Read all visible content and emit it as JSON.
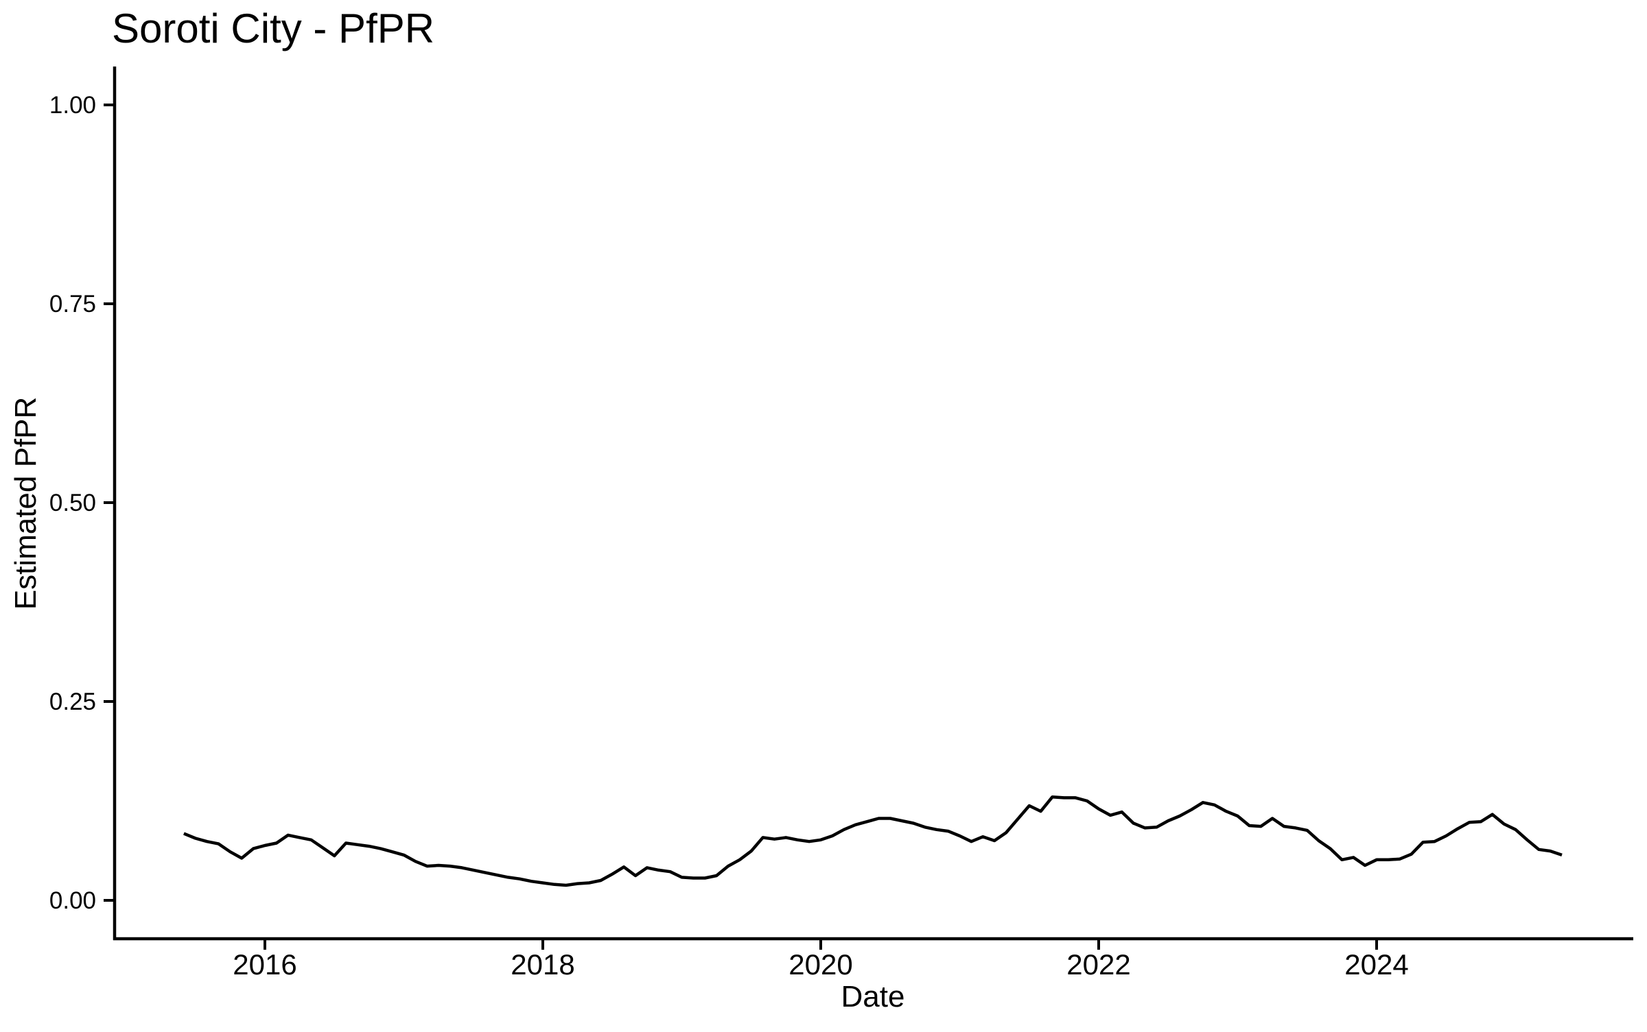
{
  "chart_data": {
    "type": "line",
    "title": "Soroti City - PfPR",
    "xlabel": "Date",
    "ylabel": "Estimated PfPR",
    "grid": "off",
    "legend_position": "none",
    "background_color": "#ffffff",
    "axis_color": "#000000",
    "x_axis": {
      "tick_labels": [
        "2016",
        "2018",
        "2020",
        "2022",
        "2024"
      ],
      "tick_years": [
        2016,
        2018,
        2020,
        2022,
        2024
      ],
      "range_decimal_years": [
        2014.91,
        2025.85
      ]
    },
    "y_axis": {
      "tick_labels": [
        "0.00",
        "0.25",
        "0.50",
        "0.75",
        "1.00"
      ],
      "tick_values": [
        0.0,
        0.25,
        0.5,
        0.75,
        1.0
      ],
      "range": [
        -0.048,
        1.048
      ]
    },
    "series": [
      {
        "name": "Estimated PfPR",
        "color": "#000000",
        "stroke_width": 4.5,
        "date_range": "Jun 2015 - May 2025",
        "dates": [
          "2015-06",
          "2015-07",
          "2015-08",
          "2015-09",
          "2015-10",
          "2015-11",
          "2015-12",
          "2016-01",
          "2016-02",
          "2016-03",
          "2016-04",
          "2016-05",
          "2016-06",
          "2016-07",
          "2016-08",
          "2016-09",
          "2016-10",
          "2016-11",
          "2016-12",
          "2017-01",
          "2017-02",
          "2017-03",
          "2017-04",
          "2017-05",
          "2017-06",
          "2017-07",
          "2017-08",
          "2017-09",
          "2017-10",
          "2017-11",
          "2017-12",
          "2018-01",
          "2018-02",
          "2018-03",
          "2018-04",
          "2018-05",
          "2018-06",
          "2018-07",
          "2018-08",
          "2018-09",
          "2018-10",
          "2018-11",
          "2018-12",
          "2019-01",
          "2019-02",
          "2019-03",
          "2019-04",
          "2019-05",
          "2019-06",
          "2019-07",
          "2019-08",
          "2019-09",
          "2019-10",
          "2019-11",
          "2019-12",
          "2020-01",
          "2020-02",
          "2020-03",
          "2020-04",
          "2020-05",
          "2020-06",
          "2020-07",
          "2020-08",
          "2020-09",
          "2020-10",
          "2020-11",
          "2020-12",
          "2021-01",
          "2021-02",
          "2021-03",
          "2021-04",
          "2021-05",
          "2021-06",
          "2021-07",
          "2021-08",
          "2021-09",
          "2021-10",
          "2021-11",
          "2021-12",
          "2022-01",
          "2022-02",
          "2022-03",
          "2022-04",
          "2022-05",
          "2022-06",
          "2022-07",
          "2022-08",
          "2022-09",
          "2022-10",
          "2022-11",
          "2022-12",
          "2023-01",
          "2023-02",
          "2023-03",
          "2023-04",
          "2023-05",
          "2023-06",
          "2023-07",
          "2023-08",
          "2023-09",
          "2023-10",
          "2023-11",
          "2023-12",
          "2024-01",
          "2024-02",
          "2024-03",
          "2024-04",
          "2024-05",
          "2024-06",
          "2024-07",
          "2024-08",
          "2024-09",
          "2024-10",
          "2024-11",
          "2024-12",
          "2025-01",
          "2025-02",
          "2025-03",
          "2025-04",
          "2025-05"
        ],
        "values": [
          0.084,
          0.078,
          0.074,
          0.071,
          0.061,
          0.053,
          0.065,
          0.069,
          0.072,
          0.082,
          0.079,
          0.076,
          0.066,
          0.056,
          0.072,
          0.07,
          0.068,
          0.065,
          0.061,
          0.057,
          0.049,
          0.043,
          0.044,
          0.043,
          0.041,
          0.038,
          0.035,
          0.032,
          0.029,
          0.027,
          0.024,
          0.022,
          0.02,
          0.019,
          0.021,
          0.022,
          0.025,
          0.033,
          0.042,
          0.031,
          0.041,
          0.038,
          0.036,
          0.029,
          0.028,
          0.028,
          0.031,
          0.043,
          0.051,
          0.062,
          0.079,
          0.077,
          0.079,
          0.076,
          0.074,
          0.076,
          0.081,
          0.089,
          0.095,
          0.099,
          0.103,
          0.103,
          0.1,
          0.097,
          0.092,
          0.089,
          0.087,
          0.081,
          0.074,
          0.08,
          0.075,
          0.085,
          0.102,
          0.119,
          0.112,
          0.13,
          0.129,
          0.129,
          0.125,
          0.115,
          0.107,
          0.111,
          0.097,
          0.091,
          0.092,
          0.1,
          0.106,
          0.114,
          0.123,
          0.12,
          0.112,
          0.106,
          0.094,
          0.093,
          0.103,
          0.093,
          0.091,
          0.088,
          0.075,
          0.065,
          0.051,
          0.054,
          0.044,
          0.051,
          0.051,
          0.052,
          0.058,
          0.073,
          0.074,
          0.081,
          0.09,
          0.098,
          0.099,
          0.108,
          0.096,
          0.089,
          0.076,
          0.064,
          0.062,
          0.057
        ]
      }
    ]
  }
}
